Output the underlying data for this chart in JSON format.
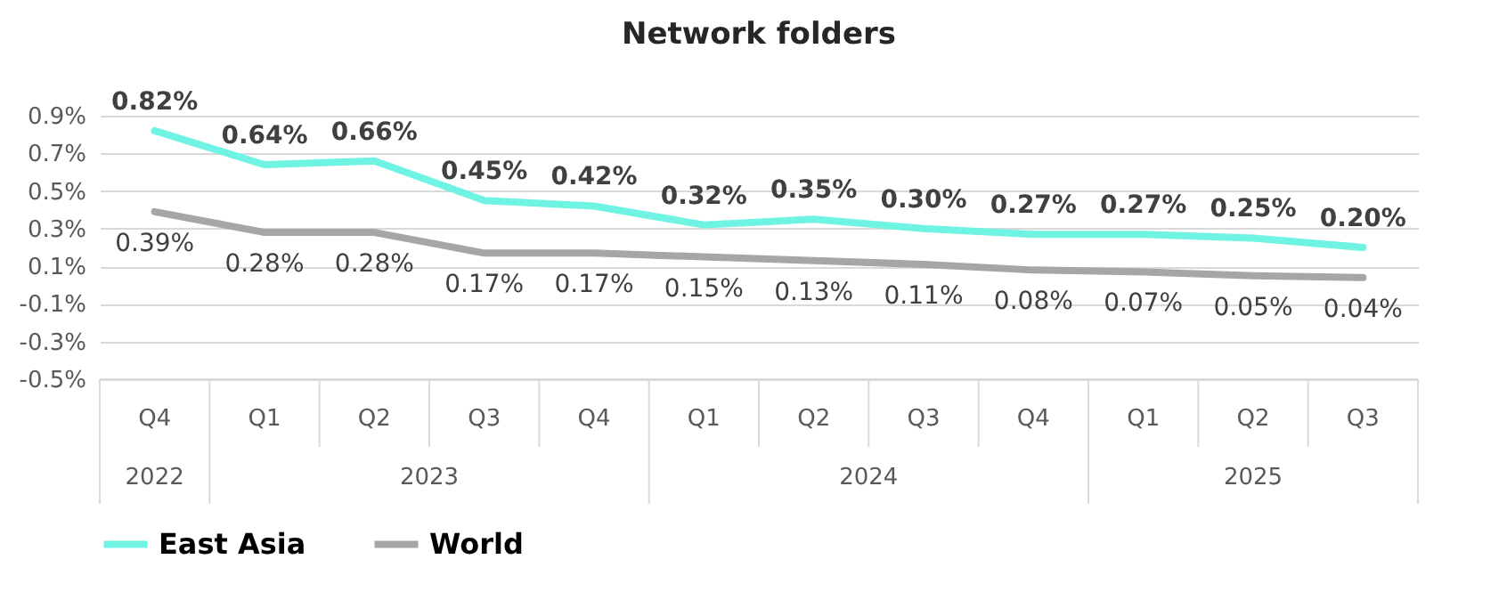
{
  "chart_data": {
    "type": "line",
    "title": "Network folders",
    "categories": [
      "Q4",
      "Q1",
      "Q2",
      "Q3",
      "Q4",
      "Q1",
      "Q2",
      "Q3",
      "Q4",
      "Q1",
      "Q2",
      "Q3"
    ],
    "annotations": [
      "2022",
      "2023",
      "2024",
      "2025"
    ],
    "series": [
      {
        "name": "East Asia",
        "color": "#6ff3e3",
        "values": [
          0.82,
          0.64,
          0.66,
          0.45,
          0.42,
          0.32,
          0.35,
          0.3,
          0.27,
          0.27,
          0.25,
          0.2
        ],
        "value_labels": [
          "0.82%",
          "0.64%",
          "0.66%",
          "0.45%",
          "0.42%",
          "0.32%",
          "0.35%",
          "0.30%",
          "0.27%",
          "0.27%",
          "0.25%",
          "0.20%"
        ]
      },
      {
        "name": "World",
        "color": "#a6a6a6",
        "values": [
          0.39,
          0.28,
          0.28,
          0.17,
          0.17,
          0.15,
          0.13,
          0.11,
          0.08,
          0.07,
          0.05,
          0.04
        ],
        "value_labels": [
          "0.39%",
          "0.28%",
          "0.28%",
          "0.17%",
          "0.17%",
          "0.15%",
          "0.13%",
          "0.11%",
          "0.08%",
          "0.07%",
          "0.05%",
          "0.04%"
        ]
      }
    ],
    "ylim": [
      -0.5,
      0.9
    ],
    "yticks": [
      {
        "value": -0.5,
        "label": "-0.5%"
      },
      {
        "value": -0.3,
        "label": "-0.3%"
      },
      {
        "value": -0.1,
        "label": "-0.1%"
      },
      {
        "value": 0.1,
        "label": "0.1%"
      },
      {
        "value": 0.3,
        "label": "0.3%"
      },
      {
        "value": 0.5,
        "label": "0.5%"
      },
      {
        "value": 0.7,
        "label": "0.7%"
      },
      {
        "value": 0.9,
        "label": "0.9%"
      }
    ],
    "grid": "y",
    "legend": "bottom",
    "marker": "none",
    "line_style": "solid"
  }
}
